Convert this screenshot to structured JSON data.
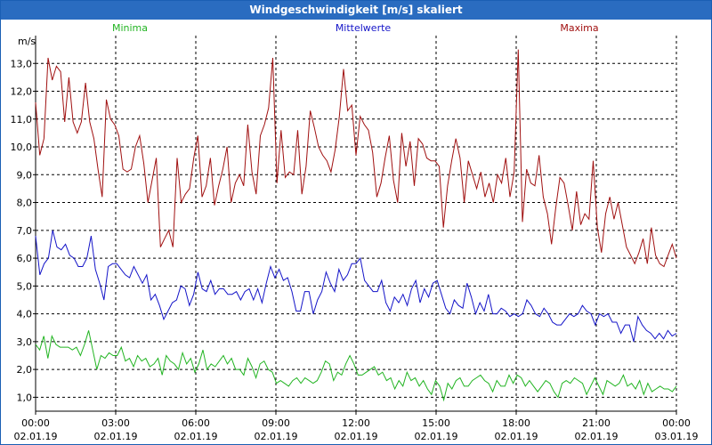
{
  "window": {
    "title": "Windgeschwindigkeit [m/s] skaliert"
  },
  "colors": {
    "minima": "#22b422",
    "mittelwerte": "#1414c8",
    "maxima": "#a01010",
    "titlebar": "#2a6cc0"
  },
  "chart_data": {
    "type": "line",
    "title": "Windgeschwindigkeit [m/s] skaliert",
    "ylabel": "m/s",
    "xlabel": "",
    "ylim": [
      0.5,
      14
    ],
    "xlim_hours": [
      0,
      24
    ],
    "grid": true,
    "legend": [
      "Minima",
      "Mittelwerte",
      "Maxima"
    ],
    "y_ticks": [
      {
        "value": 1,
        "label": "1,0"
      },
      {
        "value": 2,
        "label": "2,0"
      },
      {
        "value": 3,
        "label": "3,0"
      },
      {
        "value": 4,
        "label": "4,0"
      },
      {
        "value": 5,
        "label": "5,0"
      },
      {
        "value": 6,
        "label": "6,0"
      },
      {
        "value": 7,
        "label": "7,0"
      },
      {
        "value": 8,
        "label": "8,0"
      },
      {
        "value": 9,
        "label": "9,0"
      },
      {
        "value": 10,
        "label": "10,0"
      },
      {
        "value": 11,
        "label": "11,0"
      },
      {
        "value": 12,
        "label": "12,0"
      },
      {
        "value": 13,
        "label": "13,0"
      }
    ],
    "x_ticks": [
      {
        "hour": 0,
        "time": "00:00",
        "date": "02.01.19"
      },
      {
        "hour": 3,
        "time": "03:00",
        "date": "02.01.19"
      },
      {
        "hour": 6,
        "time": "06:00",
        "date": "02.01.19"
      },
      {
        "hour": 9,
        "time": "09:00",
        "date": "02.01.19"
      },
      {
        "hour": 12,
        "time": "12:00",
        "date": "02.01.19"
      },
      {
        "hour": 15,
        "time": "15:00",
        "date": "02.01.19"
      },
      {
        "hour": 18,
        "time": "18:00",
        "date": "02.01.19"
      },
      {
        "hour": 21,
        "time": "21:00",
        "date": "02.01.19"
      },
      {
        "hour": 24,
        "time": "00:00",
        "date": "03.01.19"
      }
    ],
    "series": [
      {
        "name": "Maxima",
        "color": "#a01010",
        "values": [
          11.6,
          9.7,
          10.3,
          13.2,
          12.4,
          12.9,
          12.7,
          10.9,
          12.5,
          10.9,
          10.5,
          10.9,
          12.3,
          10.9,
          10.3,
          9.2,
          8.2,
          11.7,
          11.0,
          10.8,
          10.4,
          9.2,
          9.1,
          9.2,
          10.0,
          10.4,
          9.4,
          8.0,
          8.8,
          9.6,
          6.4,
          6.7,
          7.0,
          6.4,
          9.6,
          8.0,
          8.3,
          8.5,
          9.6,
          10.4,
          8.2,
          8.6,
          9.6,
          7.9,
          8.6,
          9.2,
          10.0,
          8.0,
          8.7,
          9.0,
          8.6,
          10.8,
          9.1,
          8.3,
          10.4,
          10.8,
          11.4,
          13.2,
          8.7,
          10.6,
          8.9,
          9.1,
          9.0,
          10.6,
          8.3,
          9.3,
          11.3,
          10.7,
          10.0,
          9.7,
          9.5,
          9.1,
          9.9,
          11.1,
          12.8,
          11.3,
          11.5,
          9.7,
          11.1,
          10.8,
          10.6,
          9.8,
          8.2,
          8.7,
          9.6,
          10.4,
          8.8,
          8.0,
          10.5,
          9.3,
          10.2,
          8.6,
          10.3,
          10.1,
          9.6,
          9.5,
          9.5,
          9.3,
          7.1,
          8.6,
          9.5,
          10.3,
          9.6,
          8.0,
          9.5,
          9.0,
          8.5,
          9.1,
          8.2,
          8.7,
          8.0,
          9.0,
          8.7,
          9.6,
          8.2,
          9.1,
          13.5,
          7.3,
          9.2,
          8.7,
          8.6,
          9.7,
          8.2,
          7.6,
          6.5,
          7.8,
          8.9,
          8.7,
          7.9,
          7.0,
          8.4,
          7.2,
          7.6,
          7.4,
          9.5,
          7.1,
          6.2,
          7.6,
          8.2,
          7.4,
          8.0,
          7.2,
          6.4,
          6.1,
          5.8,
          6.2,
          6.7,
          5.8,
          7.1,
          6.1,
          5.8,
          5.7,
          6.1,
          6.5,
          6.0
        ]
      },
      {
        "name": "Mittelwerte",
        "color": "#1414c8",
        "values": [
          6.8,
          5.4,
          5.8,
          6.0,
          7.0,
          6.4,
          6.3,
          6.5,
          6.1,
          6.0,
          5.7,
          5.7,
          6.0,
          6.8,
          5.6,
          5.1,
          4.5,
          5.7,
          5.8,
          5.8,
          5.6,
          5.4,
          5.3,
          5.7,
          5.4,
          5.1,
          5.4,
          4.5,
          4.7,
          4.3,
          3.8,
          4.1,
          4.4,
          4.5,
          5.0,
          4.9,
          4.3,
          4.7,
          5.5,
          4.9,
          4.8,
          5.2,
          4.7,
          4.9,
          4.9,
          4.7,
          4.7,
          4.8,
          4.5,
          4.8,
          4.9,
          4.5,
          4.9,
          4.4,
          5.1,
          5.7,
          5.3,
          5.6,
          5.2,
          5.3,
          4.8,
          4.1,
          4.1,
          4.8,
          4.8,
          4.0,
          4.5,
          4.8,
          5.5,
          5.1,
          4.8,
          5.6,
          5.2,
          5.4,
          5.8,
          5.8,
          6.0,
          5.2,
          5.0,
          4.8,
          4.8,
          5.2,
          4.4,
          4.1,
          4.6,
          4.4,
          4.7,
          4.3,
          4.9,
          5.2,
          4.4,
          4.9,
          4.6,
          5.1,
          5.2,
          4.7,
          4.2,
          4.0,
          4.5,
          4.3,
          4.2,
          5.1,
          4.6,
          4.0,
          4.4,
          4.1,
          4.7,
          4.0,
          4.0,
          4.2,
          4.1,
          3.9,
          4.0,
          3.9,
          4.0,
          4.5,
          4.3,
          4.0,
          3.9,
          4.2,
          4.0,
          3.7,
          3.6,
          3.6,
          3.8,
          4.0,
          3.9,
          4.0,
          4.3,
          4.1,
          4.0,
          3.6,
          4.0,
          3.9,
          4.0,
          3.7,
          3.7,
          3.3,
          3.6,
          3.6,
          3.0,
          3.9,
          3.6,
          3.4,
          3.3,
          3.1,
          3.3,
          3.1,
          3.4,
          3.2,
          3.3
        ]
      },
      {
        "name": "Minima",
        "color": "#22b422",
        "values": [
          2.9,
          2.7,
          3.2,
          2.4,
          3.2,
          2.9,
          2.8,
          2.8,
          2.8,
          2.7,
          2.8,
          2.5,
          2.9,
          3.4,
          2.7,
          2.0,
          2.5,
          2.4,
          2.6,
          2.5,
          2.5,
          2.8,
          2.3,
          2.4,
          2.1,
          2.5,
          2.3,
          2.4,
          2.1,
          2.2,
          2.4,
          1.8,
          2.5,
          2.3,
          2.2,
          2.0,
          2.6,
          2.2,
          2.4,
          1.9,
          2.2,
          2.7,
          2.0,
          2.2,
          2.1,
          2.3,
          2.5,
          2.2,
          2.4,
          2.0,
          2.0,
          1.8,
          2.4,
          2.1,
          1.7,
          2.2,
          2.3,
          2.0,
          1.9,
          1.5,
          1.6,
          1.5,
          1.4,
          1.6,
          1.7,
          1.5,
          1.7,
          1.6,
          1.5,
          1.6,
          1.9,
          2.3,
          2.2,
          1.6,
          1.9,
          1.8,
          2.2,
          2.5,
          2.2,
          1.8,
          1.8,
          1.9,
          2.0,
          2.1,
          1.8,
          1.9,
          1.6,
          1.7,
          1.3,
          1.6,
          1.4,
          1.9,
          1.6,
          1.7,
          1.4,
          1.6,
          1.3,
          1.1,
          1.6,
          1.4,
          0.9,
          1.5,
          1.3,
          1.6,
          1.7,
          1.4,
          1.4,
          1.6,
          1.7,
          1.8,
          1.6,
          1.5,
          1.2,
          1.6,
          1.4,
          1.4,
          1.8,
          1.5,
          1.8,
          1.7,
          1.4,
          1.6,
          1.4,
          1.2,
          1.4,
          1.6,
          1.5,
          1.2,
          1.0,
          1.5,
          1.6,
          1.5,
          1.7,
          1.6,
          1.5,
          1.1,
          1.4,
          1.7,
          1.4,
          1.1,
          1.6,
          1.5,
          1.4,
          1.5,
          1.8,
          1.4,
          1.5,
          1.3,
          1.6,
          1.1,
          1.5,
          1.2,
          1.3,
          1.4,
          1.3,
          1.3,
          1.2,
          1.4
        ]
      }
    ]
  }
}
